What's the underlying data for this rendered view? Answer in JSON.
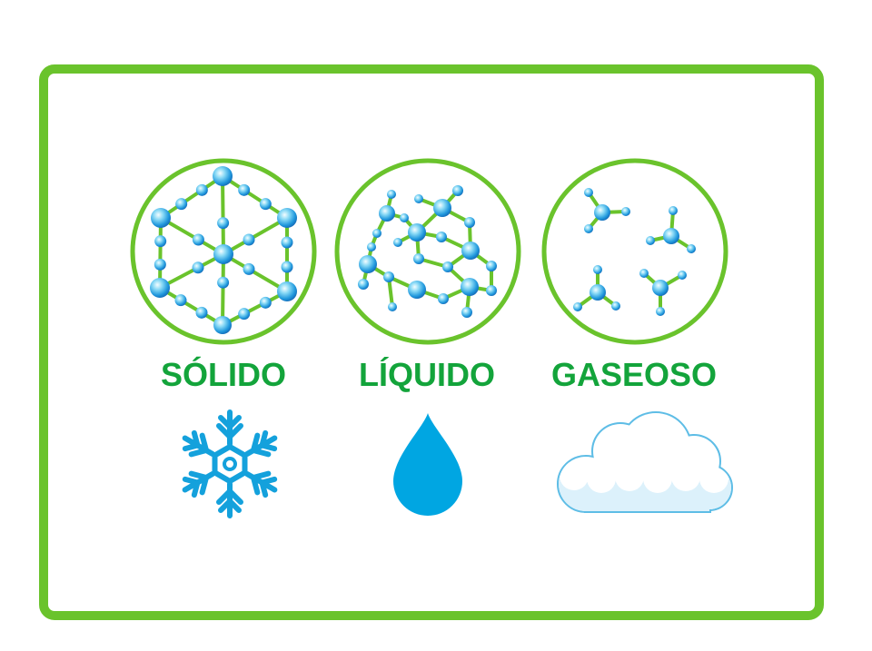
{
  "colors": {
    "frame": "#6ac32c",
    "label": "#13a43b",
    "ice": "#14a1dc",
    "drop": "#00a6e2",
    "cloud_outline": "#5ebde6",
    "cloud_shade": "#dcf1fb"
  },
  "states": [
    {
      "label": "SÓLIDO",
      "icon": "snowflake-icon"
    },
    {
      "label": "LÍQUIDO",
      "icon": "water-drop-icon"
    },
    {
      "label": "GASEOSO",
      "icon": "cloud-icon"
    }
  ]
}
